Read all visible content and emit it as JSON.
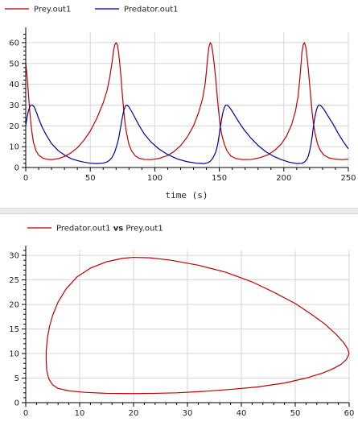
{
  "chart_data": [
    {
      "type": "line",
      "xlabel": "time (s)",
      "ylabel": "",
      "xlim": [
        0,
        250
      ],
      "ylim": [
        0,
        65
      ],
      "xticks": [
        0,
        50,
        100,
        150,
        200,
        250
      ],
      "yticks": [
        0,
        10,
        20,
        30,
        40,
        50,
        60
      ],
      "grid": true,
      "legend_position": "top-left",
      "series": [
        {
          "name": "Prey.out1",
          "color": "#c00000",
          "points": [
            [
              0,
              50
            ],
            [
              1,
              44
            ],
            [
              2,
              36
            ],
            [
              3,
              28
            ],
            [
              4,
              21
            ],
            [
              5,
              16
            ],
            [
              6,
              12
            ],
            [
              8,
              8
            ],
            [
              10,
              6
            ],
            [
              13,
              4.6
            ],
            [
              16,
              4
            ],
            [
              20,
              3.8
            ],
            [
              25,
              4.2
            ],
            [
              30,
              5.3
            ],
            [
              35,
              7
            ],
            [
              40,
              9.5
            ],
            [
              45,
              13
            ],
            [
              50,
              17.5
            ],
            [
              55,
              23.5
            ],
            [
              60,
              31
            ],
            [
              63,
              37
            ],
            [
              65,
              43
            ],
            [
              67,
              51
            ],
            [
              68,
              56
            ],
            [
              69,
              59
            ],
            [
              70,
              60
            ],
            [
              71,
              59
            ],
            [
              72,
              55
            ],
            [
              73,
              49
            ],
            [
              74,
              42
            ],
            [
              75,
              34
            ],
            [
              76,
              27
            ],
            [
              77,
              21
            ],
            [
              78,
              17
            ],
            [
              80,
              11
            ],
            [
              82,
              8
            ],
            [
              85,
              5.5
            ],
            [
              88,
              4.4
            ],
            [
              92,
              3.9
            ],
            [
              97,
              3.8
            ],
            [
              103,
              4.3
            ],
            [
              110,
              5.8
            ],
            [
              115,
              7.7
            ],
            [
              120,
              10.5
            ],
            [
              125,
              14.5
            ],
            [
              130,
              20
            ],
            [
              134,
              26.5
            ],
            [
              137,
              33
            ],
            [
              139,
              40
            ],
            [
              140,
              46
            ],
            [
              141,
              53
            ],
            [
              142,
              58
            ],
            [
              143,
              60
            ],
            [
              144,
              59
            ],
            [
              145,
              55
            ],
            [
              146,
              50
            ],
            [
              147,
              44
            ],
            [
              148,
              37
            ],
            [
              149,
              30
            ],
            [
              150,
              24
            ],
            [
              151,
              19
            ],
            [
              152,
              15.5
            ],
            [
              154,
              11
            ],
            [
              156,
              8
            ],
            [
              159,
              5.5
            ],
            [
              163,
              4.3
            ],
            [
              168,
              3.8
            ],
            [
              175,
              3.9
            ],
            [
              182,
              4.8
            ],
            [
              188,
              6.2
            ],
            [
              193,
              8.3
            ],
            [
              198,
              11.3
            ],
            [
              202,
              15
            ],
            [
              206,
              20.5
            ],
            [
              209,
              27
            ],
            [
              211,
              34
            ],
            [
              212,
              40
            ],
            [
              213,
              47
            ],
            [
              214,
              55
            ],
            [
              215,
              59
            ],
            [
              216,
              60
            ],
            [
              217,
              58
            ],
            [
              218,
              53
            ],
            [
              219,
              47
            ],
            [
              220,
              40
            ],
            [
              221,
              33
            ],
            [
              222,
              26
            ],
            [
              223,
              21
            ],
            [
              224,
              17
            ],
            [
              226,
              11.5
            ],
            [
              228,
              8.5
            ],
            [
              231,
              6
            ],
            [
              235,
              4.6
            ],
            [
              240,
              4
            ],
            [
              245,
              3.8
            ],
            [
              250,
              4
            ]
          ]
        },
        {
          "name": "Predator.out1",
          "color": "#00009a",
          "points": [
            [
              0,
              20
            ],
            [
              1,
              24
            ],
            [
              2,
              27
            ],
            [
              3,
              29
            ],
            [
              4,
              30
            ],
            [
              5,
              30
            ],
            [
              6,
              29.5
            ],
            [
              7,
              28.5
            ],
            [
              8,
              27
            ],
            [
              10,
              23.5
            ],
            [
              13,
              19
            ],
            [
              16,
              15.5
            ],
            [
              20,
              11.5
            ],
            [
              25,
              8.2
            ],
            [
              30,
              6
            ],
            [
              35,
              4.3
            ],
            [
              40,
              3.3
            ],
            [
              45,
              2.6
            ],
            [
              50,
              2.1
            ],
            [
              55,
              1.9
            ],
            [
              60,
              2.1
            ],
            [
              63,
              2.7
            ],
            [
              65,
              3.5
            ],
            [
              67,
              5
            ],
            [
              69,
              7.5
            ],
            [
              71,
              11.5
            ],
            [
              72,
              14
            ],
            [
              73,
              17.5
            ],
            [
              74,
              21
            ],
            [
              75,
              24.5
            ],
            [
              76,
              27.5
            ],
            [
              77,
              29.3
            ],
            [
              78,
              30
            ],
            [
              79,
              29.8
            ],
            [
              80,
              29
            ],
            [
              82,
              27
            ],
            [
              85,
              23.5
            ],
            [
              88,
              20
            ],
            [
              92,
              16
            ],
            [
              97,
              12.3
            ],
            [
              103,
              9
            ],
            [
              110,
              6.2
            ],
            [
              118,
              4
            ],
            [
              125,
              2.8
            ],
            [
              132,
              2.1
            ],
            [
              138,
              1.9
            ],
            [
              141,
              2.3
            ],
            [
              143,
              3
            ],
            [
              145,
              4.5
            ],
            [
              147,
              7
            ],
            [
              148,
              9
            ],
            [
              149,
              12
            ],
            [
              150,
              16
            ],
            [
              151,
              20
            ],
            [
              152,
              24
            ],
            [
              153,
              27
            ],
            [
              154,
              29
            ],
            [
              155,
              30
            ],
            [
              156,
              30
            ],
            [
              157,
              29.5
            ],
            [
              159,
              28
            ],
            [
              162,
              25
            ],
            [
              166,
              21
            ],
            [
              170,
              17.5
            ],
            [
              175,
              13.8
            ],
            [
              180,
              10.6
            ],
            [
              186,
              7.6
            ],
            [
              192,
              5.4
            ],
            [
              198,
              3.8
            ],
            [
              204,
              2.6
            ],
            [
              210,
              1.9
            ],
            [
              214,
              2
            ],
            [
              216,
              2.6
            ],
            [
              218,
              4
            ],
            [
              219,
              5.5
            ],
            [
              220,
              8
            ],
            [
              221,
              11
            ],
            [
              222,
              15
            ],
            [
              223,
              20
            ],
            [
              224,
              24
            ],
            [
              225,
              27
            ],
            [
              226,
              29
            ],
            [
              227,
              30
            ],
            [
              228,
              30
            ],
            [
              229,
              29.5
            ],
            [
              231,
              28
            ],
            [
              234,
              25
            ],
            [
              238,
              21
            ],
            [
              242,
              16.5
            ],
            [
              246,
              12.5
            ],
            [
              250,
              9
            ]
          ]
        }
      ]
    },
    {
      "type": "line",
      "xlabel": "",
      "ylabel": "",
      "xlim": [
        0,
        60
      ],
      "ylim": [
        0,
        31
      ],
      "xticks": [
        0,
        10,
        20,
        30,
        40,
        50,
        60
      ],
      "yticks": [
        0,
        5,
        10,
        15,
        20,
        25,
        30
      ],
      "grid": true,
      "legend_position": "top-left",
      "series": [
        {
          "name": "Predator.out1 vs Prey.out1",
          "color": "#c00000",
          "points": [
            [
              60,
              10
            ],
            [
              59.5,
              8.8
            ],
            [
              58.5,
              7.8
            ],
            [
              57,
              6.9
            ],
            [
              55,
              6.0
            ],
            [
              52,
              5.0
            ],
            [
              48,
              4.0
            ],
            [
              43,
              3.2
            ],
            [
              38,
              2.7
            ],
            [
              33,
              2.3
            ],
            [
              28,
              2.0
            ],
            [
              24,
              1.9
            ],
            [
              20,
              1.85
            ],
            [
              15,
              1.9
            ],
            [
              11,
              2.1
            ],
            [
              8,
              2.4
            ],
            [
              6,
              2.9
            ],
            [
              5,
              3.6
            ],
            [
              4.3,
              4.8
            ],
            [
              3.9,
              6.5
            ],
            [
              3.8,
              8.5
            ],
            [
              3.8,
              10.5
            ],
            [
              4.0,
              13
            ],
            [
              4.4,
              15.5
            ],
            [
              5.0,
              17.8
            ],
            [
              6,
              20.5
            ],
            [
              7.5,
              23.2
            ],
            [
              9.5,
              25.6
            ],
            [
              12,
              27.4
            ],
            [
              15,
              28.7
            ],
            [
              18,
              29.4
            ],
            [
              20,
              29.6
            ],
            [
              23,
              29.5
            ],
            [
              27,
              29.0
            ],
            [
              32,
              28.0
            ],
            [
              37,
              26.6
            ],
            [
              42,
              24.6
            ],
            [
              46,
              22.5
            ],
            [
              50,
              20.2
            ],
            [
              53,
              18.0
            ],
            [
              55.5,
              16.0
            ],
            [
              57.5,
              14.0
            ],
            [
              59,
              12.2
            ],
            [
              59.7,
              11
            ],
            [
              60,
              10
            ]
          ]
        }
      ]
    }
  ]
}
